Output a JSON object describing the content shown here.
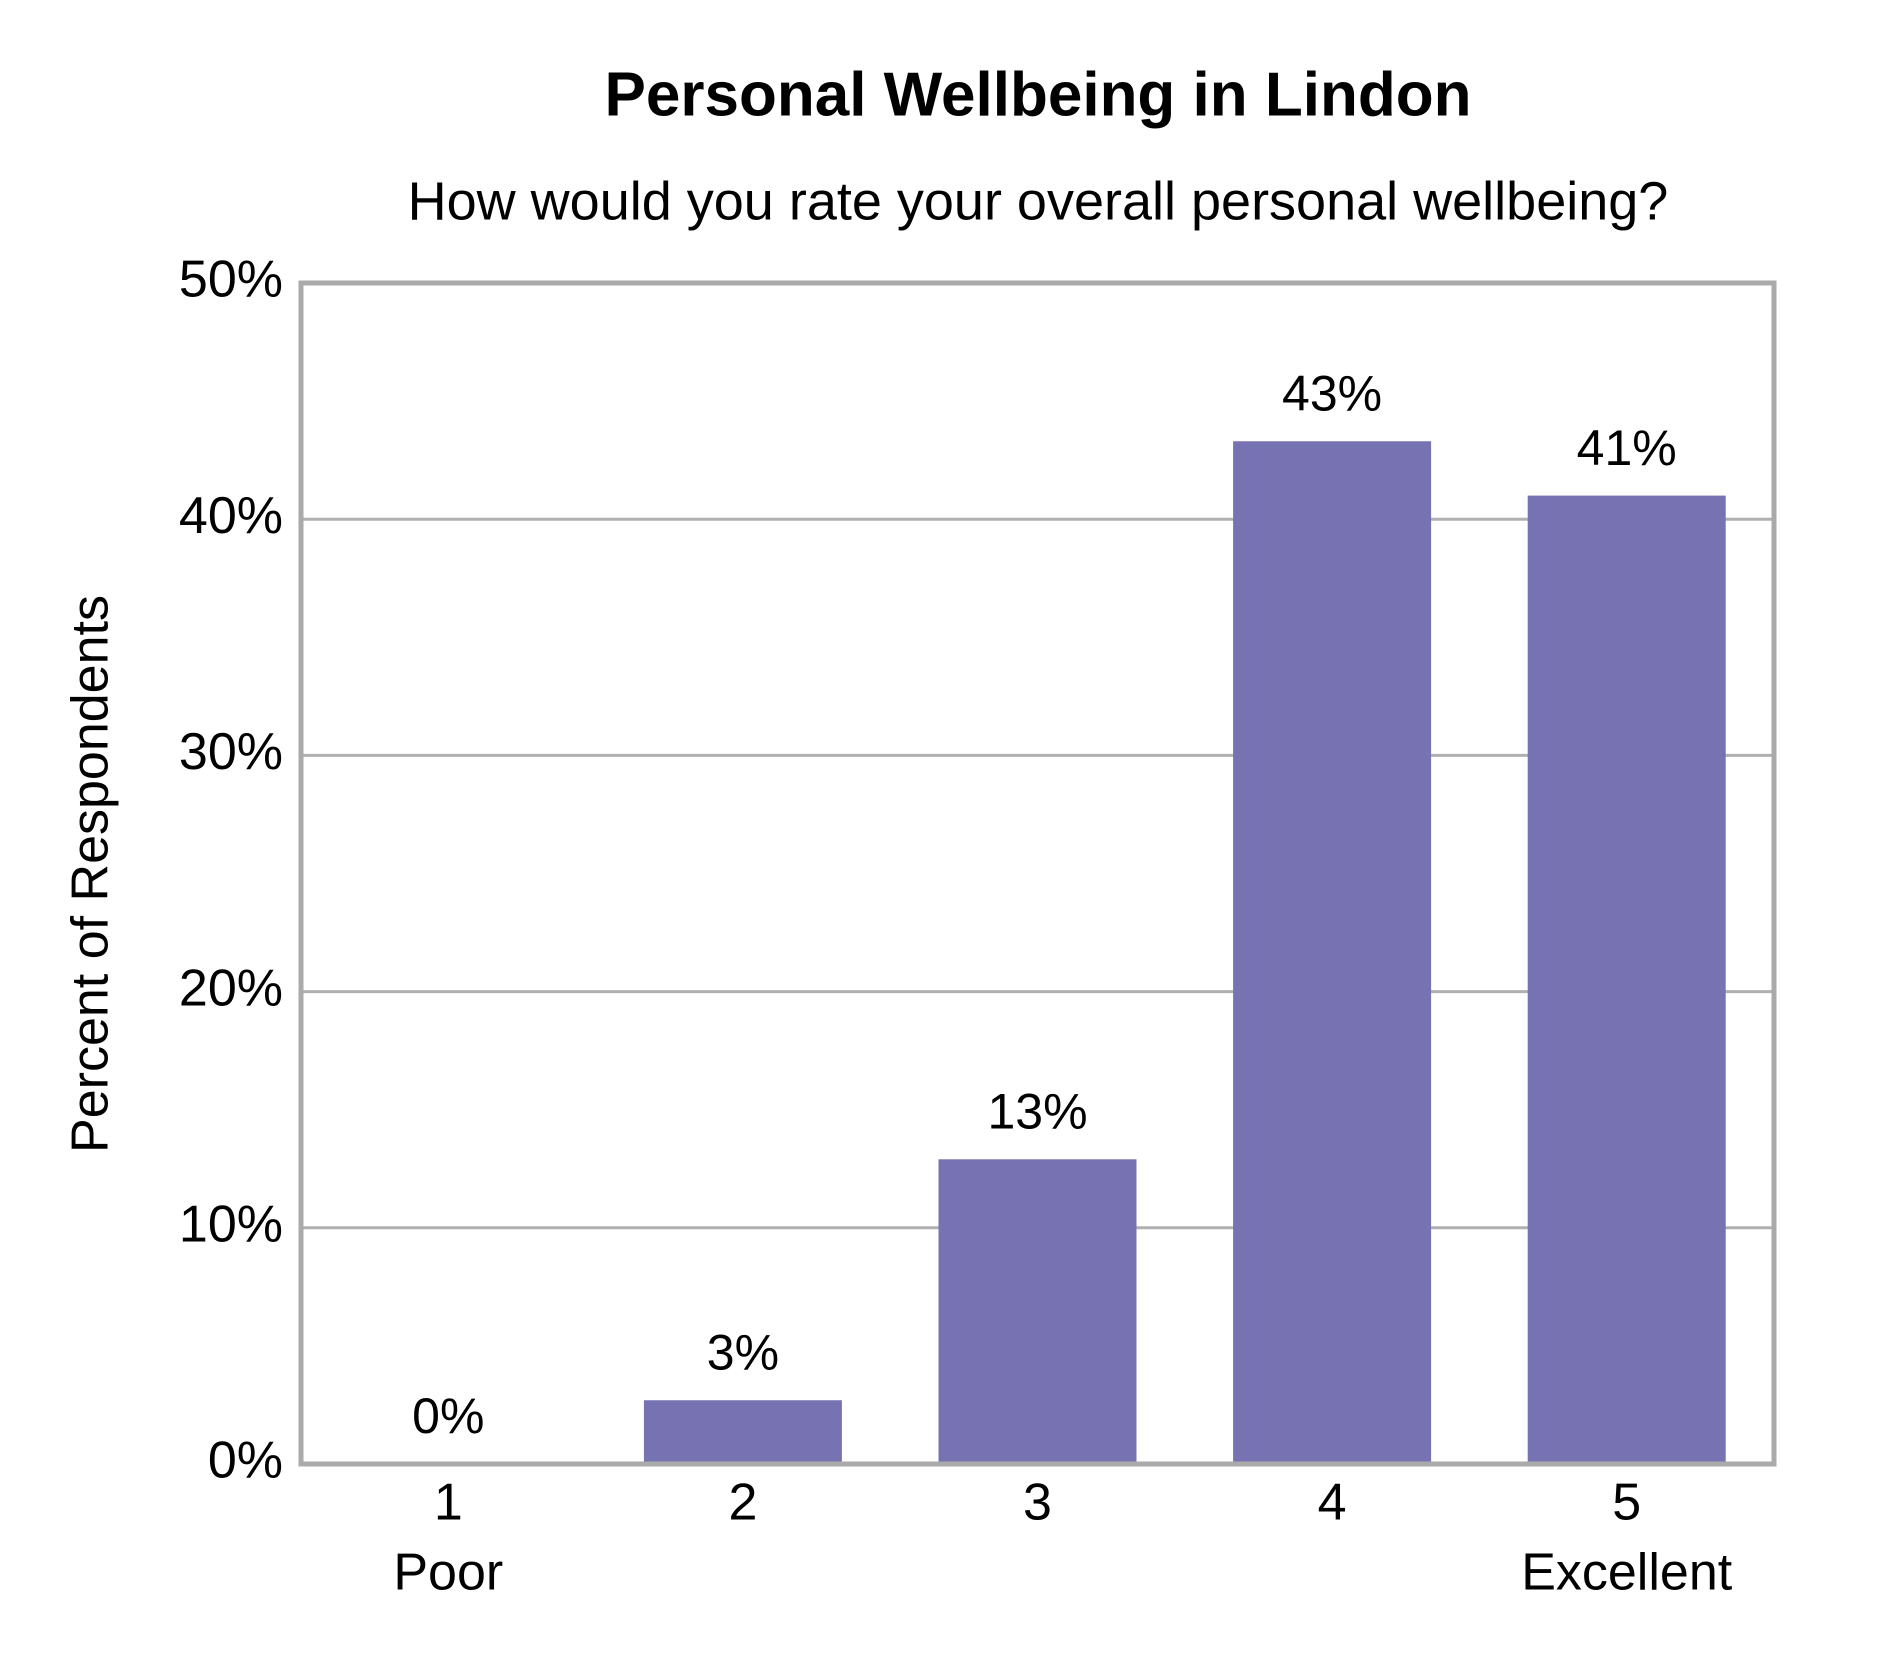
{
  "chart_data": {
    "type": "bar",
    "title": "Personal Wellbeing in Lindon",
    "subtitle": "How would you rate your overall personal wellbeing?",
    "y_label": "Percent of Respondents",
    "categories": [
      [
        "1",
        "Poor"
      ],
      [
        "2"
      ],
      [
        "3"
      ],
      [
        "4"
      ],
      [
        "5",
        "Excellent"
      ]
    ],
    "values": [
      0,
      2.7,
      12.9,
      43.3,
      41
    ],
    "value_labels": [
      "0%",
      "3%",
      "13%",
      "43%",
      "41%"
    ],
    "color": "#7772b1",
    "ylim": [
      0,
      50
    ],
    "yticks": [
      {
        "value": 0,
        "label": "0%"
      },
      {
        "value": 10,
        "label": "10%"
      },
      {
        "value": 20,
        "label": "20%"
      },
      {
        "value": 30,
        "label": "30%"
      },
      {
        "value": 40,
        "label": "40%"
      },
      {
        "value": 50,
        "label": "50%"
      }
    ],
    "grid": true
  }
}
